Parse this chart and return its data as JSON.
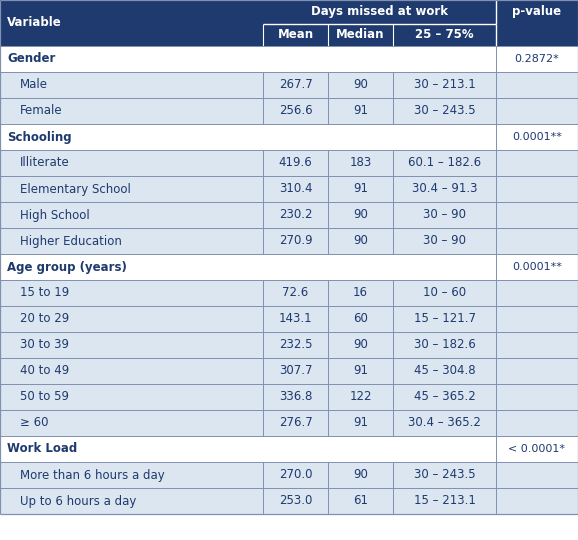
{
  "header_bg": "#1e3a6e",
  "row_bg_light": "#dce6f1",
  "row_bg_white": "#ffffff",
  "header_text_color": "#ffffff",
  "body_text_color": "#1e3a6e",
  "grid_color": "#8090b0",
  "header1": "Variable",
  "header2": "Days missed at work",
  "header3": "p-value",
  "subheaders": [
    "Mean",
    "Median",
    "25 – 75%"
  ],
  "rows": [
    {
      "label": "Gender",
      "indent": false,
      "mean": "",
      "median": "",
      "range": "",
      "pvalue": "0.2872*"
    },
    {
      "label": "Male",
      "indent": true,
      "mean": "267.7",
      "median": "90",
      "range": "30 – 213.1",
      "pvalue": ""
    },
    {
      "label": "Female",
      "indent": true,
      "mean": "256.6",
      "median": "91",
      "range": "30 – 243.5",
      "pvalue": ""
    },
    {
      "label": "Schooling",
      "indent": false,
      "mean": "",
      "median": "",
      "range": "",
      "pvalue": "0.0001**"
    },
    {
      "label": "Illiterate",
      "indent": true,
      "mean": "419.6",
      "median": "183",
      "range": "60.1 – 182.6",
      "pvalue": ""
    },
    {
      "label": "Elementary School",
      "indent": true,
      "mean": "310.4",
      "median": "91",
      "range": "30.4 – 91.3",
      "pvalue": ""
    },
    {
      "label": "High School",
      "indent": true,
      "mean": "230.2",
      "median": "90",
      "range": "30 – 90",
      "pvalue": ""
    },
    {
      "label": "Higher Education",
      "indent": true,
      "mean": "270.9",
      "median": "90",
      "range": "30 – 90",
      "pvalue": ""
    },
    {
      "label": "Age group (years)",
      "indent": false,
      "mean": "",
      "median": "",
      "range": "",
      "pvalue": "0.0001**"
    },
    {
      "label": "15 to 19",
      "indent": true,
      "mean": "72.6",
      "median": "16",
      "range": "10 – 60",
      "pvalue": ""
    },
    {
      "label": "20 to 29",
      "indent": true,
      "mean": "143.1",
      "median": "60",
      "range": "15 – 121.7",
      "pvalue": ""
    },
    {
      "label": "30 to 39",
      "indent": true,
      "mean": "232.5",
      "median": "90",
      "range": "30 – 182.6",
      "pvalue": ""
    },
    {
      "label": "40 to 49",
      "indent": true,
      "mean": "307.7",
      "median": "91",
      "range": "45 – 304.8",
      "pvalue": ""
    },
    {
      "label": "50 to 59",
      "indent": true,
      "mean": "336.8",
      "median": "122",
      "range": "45 – 365.2",
      "pvalue": ""
    },
    {
      "≥ 60": "≥ 60",
      "label": "≥ 60",
      "indent": true,
      "mean": "276.7",
      "median": "91",
      "range": "30.4 – 365.2",
      "pvalue": ""
    },
    {
      "label": "Work Load",
      "indent": false,
      "mean": "",
      "median": "",
      "range": "",
      "pvalue": "< 0.0001*"
    },
    {
      "label": "More than 6 hours a day",
      "indent": true,
      "mean": "270.0",
      "median": "90",
      "range": "30 – 243.5",
      "pvalue": ""
    },
    {
      "label": "Up to 6 hours a day",
      "indent": true,
      "mean": "253.0",
      "median": "61",
      "range": "15 – 213.1",
      "pvalue": ""
    }
  ]
}
